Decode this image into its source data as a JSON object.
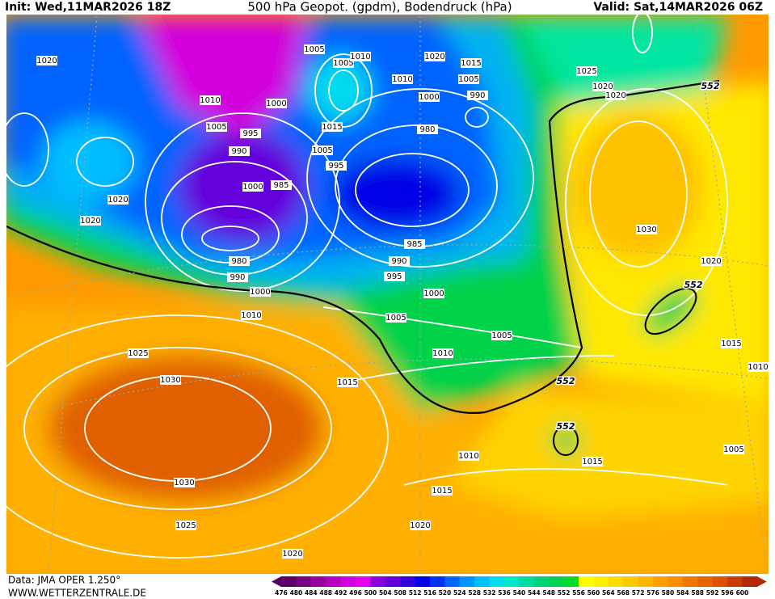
{
  "header": {
    "init": "Init: Wed,11MAR2026 18Z",
    "title": "500 hPa Geopot. (gpdm), Bodendruck (hPa)",
    "valid": "Valid: Sat,14MAR2026 06Z"
  },
  "footer": {
    "source": "Data: JMA OPER 1.250°",
    "site": "WWW.WETTERZENTRALE.DE"
  },
  "scale": {
    "values": [
      476,
      480,
      484,
      488,
      492,
      496,
      500,
      504,
      508,
      512,
      516,
      520,
      524,
      528,
      532,
      536,
      540,
      544,
      548,
      552,
      556,
      560,
      564,
      568,
      572,
      576,
      580,
      584,
      588,
      592,
      596,
      600
    ],
    "colors": [
      "#5a0064",
      "#780082",
      "#9a00a0",
      "#b400be",
      "#d200dc",
      "#e600f0",
      "#8a00e0",
      "#6400dc",
      "#3200dc",
      "#0000e6",
      "#0032f0",
      "#0064ff",
      "#0096ff",
      "#00beff",
      "#00dcf0",
      "#00e6c8",
      "#00dca0",
      "#00d278",
      "#00d250",
      "#00dc28",
      "#ffff00",
      "#fff000",
      "#ffdc00",
      "#ffc800",
      "#ffb400",
      "#ffa000",
      "#ff8c00",
      "#f07800",
      "#e66400",
      "#dc5000",
      "#c83c00",
      "#b42800"
    ]
  },
  "isobar_labels": [
    "1020",
    "1010",
    "1005",
    "995",
    "990",
    "1000",
    "985",
    "980",
    "990",
    "1000",
    "1010",
    "1025",
    "1030",
    "1030",
    "1025",
    "1020",
    "1015",
    "1010",
    "1005",
    "1000",
    "995",
    "990",
    "985",
    "980",
    "1000",
    "1010",
    "1020",
    "1015",
    "1005",
    "990",
    "1025",
    "1020",
    "1020",
    "1030",
    "1020",
    "1015",
    "1010",
    "1005",
    "1015",
    "1010",
    "1015",
    "1020",
    "1005",
    "1015",
    "1005",
    "995",
    "1005",
    "1005",
    "1010",
    "1000",
    "1020",
    "1020"
  ],
  "geopotential_labels": [
    "552",
    "552",
    "552",
    "552"
  ]
}
